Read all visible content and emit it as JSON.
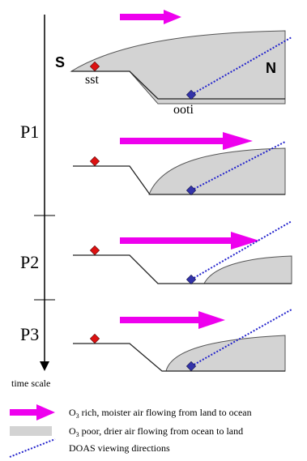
{
  "labels": {
    "south": "S",
    "north": "N",
    "site_sst": "sst",
    "site_ooti": "ooti",
    "periods": [
      "P1",
      "P2",
      "P3"
    ],
    "time_axis": "time scale"
  },
  "legend": {
    "land_to_ocean_prefix": "O",
    "land_to_ocean_sub": "3",
    "land_to_ocean_text": " rich, moister air flowing from land to ocean",
    "ocean_to_land_prefix": "O",
    "ocean_to_land_sub": "3",
    "ocean_to_land_text": " poor, drier air flowing from ocean to land",
    "doas_text": "DOAS viewing directions"
  },
  "colors": {
    "arrow": "#ee00ee",
    "ocean_air_fill": "#d3d3d3",
    "ocean_air_stroke": "#555555",
    "terrain": "#222222",
    "sst_marker": "#dd1111",
    "ooti_marker": "#3333aa",
    "doas_line": "#2222cc"
  }
}
